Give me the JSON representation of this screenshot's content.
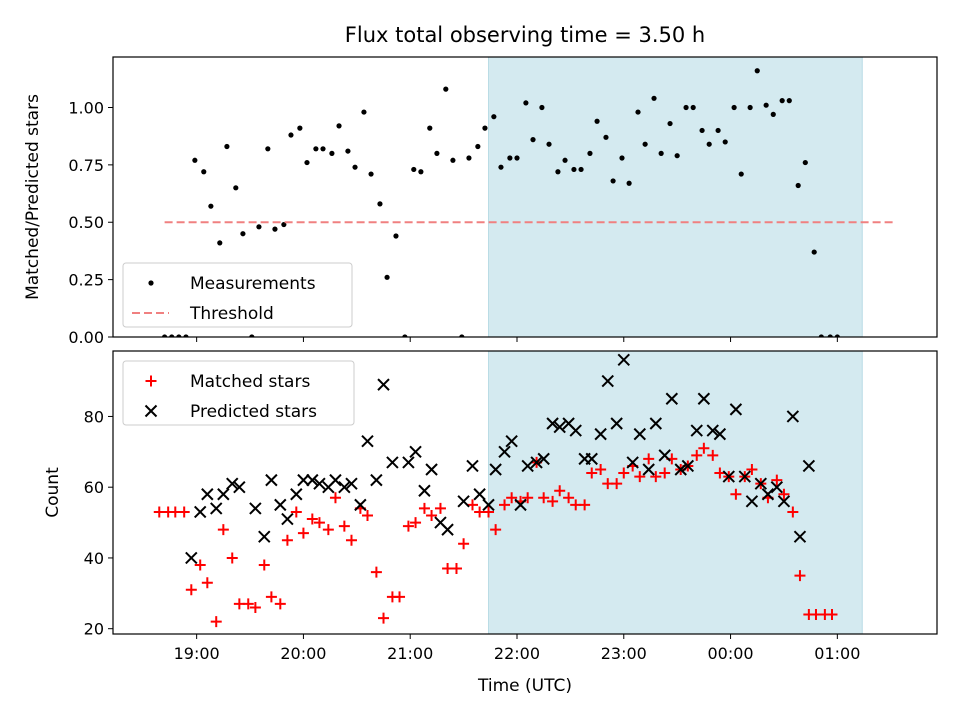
{
  "title": "Flux total observing time = 3.50 h",
  "chart_data": [
    {
      "type": "scatter",
      "ylabel": "Matched/Predicted stars",
      "xlabel": "",
      "xlim": [
        "18:13",
        "01:56"
      ],
      "ylim": [
        0,
        1.22
      ],
      "yticks": [
        "0.00",
        "0.25",
        "0.50",
        "0.75",
        "1.00"
      ],
      "xticks": [
        "19:00",
        "20:00",
        "21:00",
        "22:00",
        "23:00",
        "00:00",
        "01:00"
      ],
      "shaded_interval": [
        "21:44",
        "01:14"
      ],
      "shaded_color": "#d4eaf0",
      "legend": {
        "position": "lower-left",
        "entries": [
          "Measurements",
          "Threshold"
        ]
      },
      "series": [
        {
          "name": "Measurements",
          "marker": "dot",
          "color": "#000000",
          "points": [
            [
              "18:42",
              0.0
            ],
            [
              "18:46",
              0.0
            ],
            [
              "18:50",
              0.0
            ],
            [
              "18:54",
              0.0
            ],
            [
              "18:59",
              0.77
            ],
            [
              "19:04",
              0.72
            ],
            [
              "19:08",
              0.57
            ],
            [
              "19:13",
              0.41
            ],
            [
              "19:17",
              0.83
            ],
            [
              "19:22",
              0.65
            ],
            [
              "19:26",
              0.45
            ],
            [
              "19:31",
              0.0
            ],
            [
              "19:35",
              0.48
            ],
            [
              "19:40",
              0.82
            ],
            [
              "19:44",
              0.47
            ],
            [
              "19:49",
              0.49
            ],
            [
              "19:53",
              0.88
            ],
            [
              "19:58",
              0.91
            ],
            [
              "20:02",
              0.76
            ],
            [
              "20:07",
              0.82
            ],
            [
              "20:11",
              0.82
            ],
            [
              "20:16",
              0.8
            ],
            [
              "20:20",
              0.92
            ],
            [
              "20:25",
              0.81
            ],
            [
              "20:29",
              0.74
            ],
            [
              "20:34",
              0.98
            ],
            [
              "20:38",
              0.71
            ],
            [
              "20:43",
              0.58
            ],
            [
              "20:47",
              0.26
            ],
            [
              "20:52",
              0.44
            ],
            [
              "20:57",
              0.0
            ],
            [
              "21:02",
              0.73
            ],
            [
              "21:06",
              0.72
            ],
            [
              "21:11",
              0.91
            ],
            [
              "21:15",
              0.8
            ],
            [
              "21:20",
              1.08
            ],
            [
              "21:24",
              0.77
            ],
            [
              "21:29",
              0.0
            ],
            [
              "21:33",
              0.78
            ],
            [
              "21:38",
              0.83
            ],
            [
              "21:42",
              0.91
            ],
            [
              "21:47",
              0.96
            ],
            [
              "21:51",
              0.74
            ],
            [
              "21:56",
              0.78
            ],
            [
              "22:00",
              0.78
            ],
            [
              "22:05",
              1.02
            ],
            [
              "22:09",
              0.86
            ],
            [
              "22:14",
              1.0
            ],
            [
              "22:18",
              0.84
            ],
            [
              "22:23",
              0.72
            ],
            [
              "22:27",
              0.77
            ],
            [
              "22:32",
              0.73
            ],
            [
              "22:36",
              0.73
            ],
            [
              "22:41",
              0.8
            ],
            [
              "22:45",
              0.94
            ],
            [
              "22:50",
              0.87
            ],
            [
              "22:54",
              0.68
            ],
            [
              "22:59",
              0.78
            ],
            [
              "23:03",
              0.67
            ],
            [
              "23:08",
              0.98
            ],
            [
              "23:12",
              0.84
            ],
            [
              "23:17",
              1.04
            ],
            [
              "23:21",
              0.8
            ],
            [
              "23:26",
              0.93
            ],
            [
              "23:30",
              0.79
            ],
            [
              "23:35",
              1.0
            ],
            [
              "23:39",
              1.0
            ],
            [
              "23:44",
              0.9
            ],
            [
              "23:48",
              0.84
            ],
            [
              "23:53",
              0.9
            ],
            [
              "23:57",
              0.85
            ],
            [
              "00:02",
              1.0
            ],
            [
              "00:06",
              0.71
            ],
            [
              "00:11",
              1.0
            ],
            [
              "00:15",
              1.16
            ],
            [
              "00:20",
              1.01
            ],
            [
              "00:24",
              0.97
            ],
            [
              "00:29",
              1.03
            ],
            [
              "00:33",
              1.03
            ],
            [
              "00:38",
              0.66
            ],
            [
              "00:42",
              0.76
            ],
            [
              "00:47",
              0.37
            ],
            [
              "00:51",
              0.0
            ],
            [
              "00:56",
              0.0
            ],
            [
              "01:00",
              0.0
            ]
          ]
        },
        {
          "name": "Threshold",
          "style": "dashed",
          "color": "#f08080",
          "x": [
            "18:42",
            "01:33"
          ],
          "y": [
            0.5,
            0.5
          ]
        }
      ]
    },
    {
      "type": "scatter",
      "ylabel": "Count",
      "xlabel": "Time (UTC)",
      "xlim": [
        "18:13",
        "01:56"
      ],
      "ylim": [
        18.5,
        98.5
      ],
      "yticks": [
        "20",
        "40",
        "60",
        "80"
      ],
      "xticks": [
        "19:00",
        "20:00",
        "21:00",
        "22:00",
        "23:00",
        "00:00",
        "01:00"
      ],
      "shaded_interval": [
        "21:44",
        "01:14"
      ],
      "shaded_color": "#d4eaf0",
      "legend": {
        "position": "upper-left",
        "entries": [
          "Matched stars",
          "Predicted stars"
        ]
      },
      "series": [
        {
          "name": "Matched stars",
          "marker": "plus",
          "color": "#ff0000",
          "points": [
            [
              "18:39",
              53
            ],
            [
              "18:44",
              53
            ],
            [
              "18:48",
              53
            ],
            [
              "18:53",
              53
            ],
            [
              "18:57",
              31
            ],
            [
              "19:02",
              38
            ],
            [
              "19:06",
              33
            ],
            [
              "19:11",
              22
            ],
            [
              "19:15",
              48
            ],
            [
              "19:20",
              40
            ],
            [
              "19:24",
              27
            ],
            [
              "19:29",
              27
            ],
            [
              "19:33",
              26
            ],
            [
              "19:38",
              38
            ],
            [
              "19:42",
              29
            ],
            [
              "19:47",
              27
            ],
            [
              "19:51",
              45
            ],
            [
              "19:56",
              53
            ],
            [
              "20:00",
              47
            ],
            [
              "20:05",
              51
            ],
            [
              "20:09",
              50
            ],
            [
              "20:14",
              48
            ],
            [
              "20:18",
              57
            ],
            [
              "20:23",
              49
            ],
            [
              "20:27",
              45
            ],
            [
              "20:32",
              54
            ],
            [
              "20:36",
              52
            ],
            [
              "20:41",
              36
            ],
            [
              "20:45",
              23
            ],
            [
              "20:50",
              29
            ],
            [
              "20:54",
              29
            ],
            [
              "20:59",
              49
            ],
            [
              "21:03",
              50
            ],
            [
              "21:08",
              54
            ],
            [
              "21:12",
              52
            ],
            [
              "21:17",
              54
            ],
            [
              "21:21",
              37
            ],
            [
              "21:26",
              37
            ],
            [
              "21:30",
              44
            ],
            [
              "21:35",
              55
            ],
            [
              "21:39",
              53
            ],
            [
              "21:44",
              53
            ],
            [
              "21:48",
              48
            ],
            [
              "21:53",
              55
            ],
            [
              "21:57",
              57
            ],
            [
              "22:02",
              56
            ],
            [
              "22:06",
              57
            ],
            [
              "22:11",
              67
            ],
            [
              "22:15",
              57
            ],
            [
              "22:20",
              56
            ],
            [
              "22:24",
              59
            ],
            [
              "22:29",
              57
            ],
            [
              "22:33",
              55
            ],
            [
              "22:38",
              55
            ],
            [
              "22:42",
              64
            ],
            [
              "22:47",
              65
            ],
            [
              "22:51",
              61
            ],
            [
              "22:56",
              61
            ],
            [
              "23:00",
              64
            ],
            [
              "23:05",
              66
            ],
            [
              "23:09",
              63
            ],
            [
              "23:14",
              68
            ],
            [
              "23:18",
              63
            ],
            [
              "23:23",
              64
            ],
            [
              "23:27",
              68
            ],
            [
              "23:32",
              65
            ],
            [
              "23:36",
              66
            ],
            [
              "23:41",
              69
            ],
            [
              "23:45",
              71
            ],
            [
              "23:50",
              69
            ],
            [
              "23:54",
              64
            ],
            [
              "23:59",
              63
            ],
            [
              "00:03",
              58
            ],
            [
              "00:08",
              63
            ],
            [
              "00:12",
              65
            ],
            [
              "00:17",
              61
            ],
            [
              "00:21",
              57
            ],
            [
              "00:26",
              62
            ],
            [
              "00:30",
              58
            ],
            [
              "00:35",
              53
            ],
            [
              "00:39",
              35
            ],
            [
              "00:44",
              24
            ],
            [
              "00:48",
              24
            ],
            [
              "00:53",
              24
            ],
            [
              "00:57",
              24
            ]
          ]
        },
        {
          "name": "Predicted stars",
          "marker": "x",
          "color": "#000000",
          "points": [
            [
              "18:57",
              40
            ],
            [
              "19:02",
              53
            ],
            [
              "19:06",
              58
            ],
            [
              "19:11",
              54
            ],
            [
              "19:15",
              58
            ],
            [
              "19:20",
              61
            ],
            [
              "19:24",
              60
            ],
            [
              "19:33",
              54
            ],
            [
              "19:38",
              46
            ],
            [
              "19:42",
              62
            ],
            [
              "19:47",
              55
            ],
            [
              "19:51",
              51
            ],
            [
              "19:56",
              58
            ],
            [
              "20:00",
              62
            ],
            [
              "20:05",
              62
            ],
            [
              "20:09",
              61
            ],
            [
              "20:14",
              60
            ],
            [
              "20:18",
              62
            ],
            [
              "20:23",
              60
            ],
            [
              "20:27",
              61
            ],
            [
              "20:32",
              55
            ],
            [
              "20:36",
              73
            ],
            [
              "20:41",
              62
            ],
            [
              "20:45",
              89
            ],
            [
              "20:50",
              67
            ],
            [
              "20:59",
              67
            ],
            [
              "21:03",
              70
            ],
            [
              "21:08",
              59
            ],
            [
              "21:12",
              65
            ],
            [
              "21:17",
              50
            ],
            [
              "21:21",
              48
            ],
            [
              "21:30",
              56
            ],
            [
              "21:35",
              66
            ],
            [
              "21:39",
              58
            ],
            [
              "21:44",
              55
            ],
            [
              "21:48",
              65
            ],
            [
              "21:53",
              70
            ],
            [
              "21:57",
              73
            ],
            [
              "22:02",
              55
            ],
            [
              "22:06",
              66
            ],
            [
              "22:11",
              67
            ],
            [
              "22:15",
              68
            ],
            [
              "22:20",
              78
            ],
            [
              "22:24",
              77
            ],
            [
              "22:29",
              78
            ],
            [
              "22:33",
              76
            ],
            [
              "22:38",
              68
            ],
            [
              "22:42",
              68
            ],
            [
              "22:47",
              75
            ],
            [
              "22:51",
              90
            ],
            [
              "22:56",
              78
            ],
            [
              "23:00",
              96
            ],
            [
              "23:05",
              67
            ],
            [
              "23:09",
              75
            ],
            [
              "23:14",
              65
            ],
            [
              "23:18",
              78
            ],
            [
              "23:23",
              69
            ],
            [
              "23:27",
              85
            ],
            [
              "23:32",
              65
            ],
            [
              "23:36",
              66
            ],
            [
              "23:41",
              76
            ],
            [
              "23:45",
              85
            ],
            [
              "23:50",
              76
            ],
            [
              "23:54",
              75
            ],
            [
              "23:59",
              63
            ],
            [
              "00:03",
              82
            ],
            [
              "00:08",
              63
            ],
            [
              "00:12",
              56
            ],
            [
              "00:17",
              61
            ],
            [
              "00:21",
              58
            ],
            [
              "00:26",
              60
            ],
            [
              "00:30",
              56
            ],
            [
              "00:35",
              80
            ],
            [
              "00:39",
              46
            ],
            [
              "00:44",
              66
            ]
          ]
        }
      ]
    }
  ]
}
